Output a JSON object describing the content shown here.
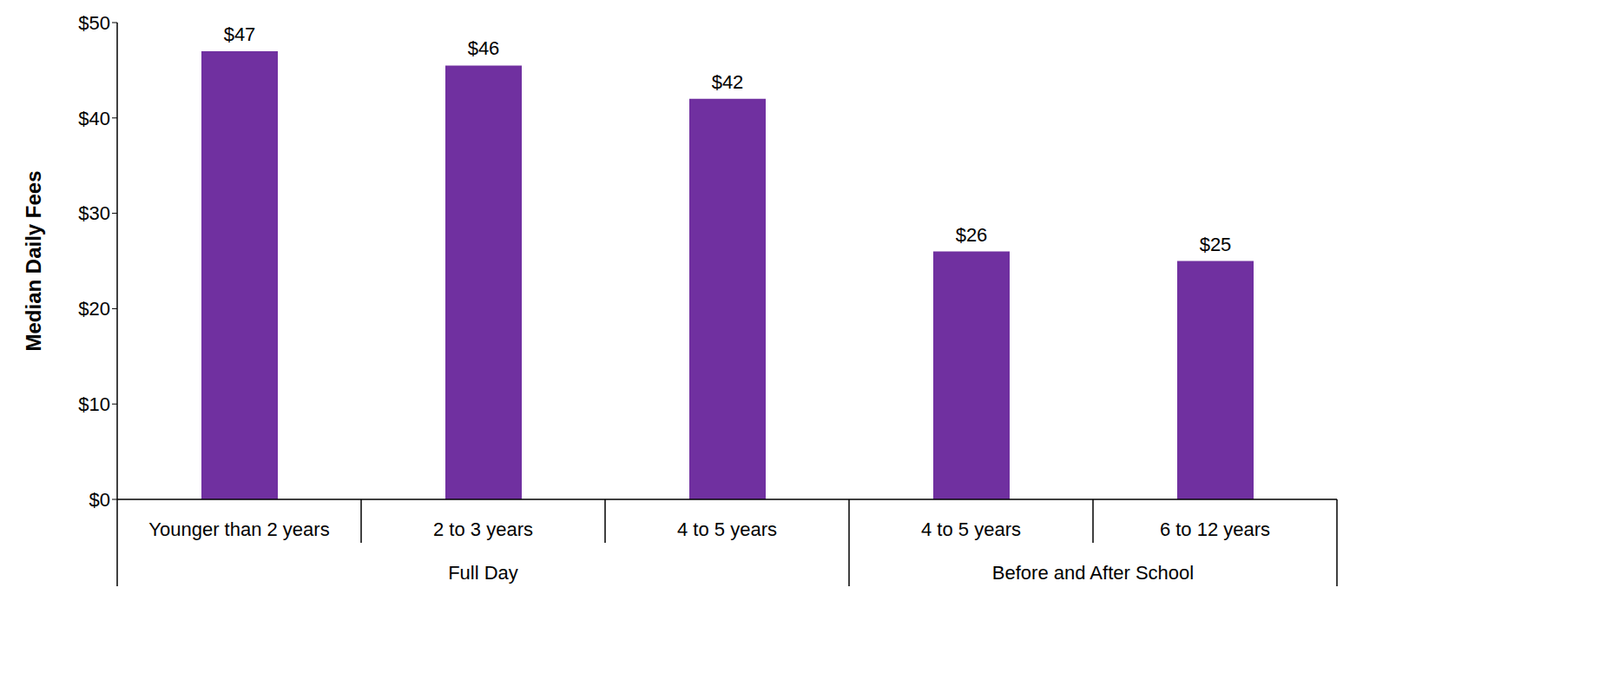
{
  "chart_data": {
    "type": "bar",
    "y_label": "Median Daily Fees",
    "categories": [
      "Younger than 2 years",
      "2 to 3 years",
      "4 to 5 years",
      "4 to 5 years",
      "6 to 12 years"
    ],
    "category_groups": [
      "Full Day",
      "Full Day",
      "Full Day",
      "Before and After School",
      "Before and After School"
    ],
    "values": [
      47,
      45.5,
      42,
      26,
      25
    ],
    "value_labels": [
      "$47",
      "$46",
      "$42",
      "$26",
      "$25"
    ],
    "color": "#7030a0",
    "ylim": [
      0,
      50
    ],
    "yticks": [
      {
        "value": 0,
        "label": "$0"
      },
      {
        "value": 10,
        "label": "$10"
      },
      {
        "value": 20,
        "label": "$20"
      },
      {
        "value": 30,
        "label": "$30"
      },
      {
        "value": 40,
        "label": "$40"
      },
      {
        "value": 50,
        "label": "$50"
      }
    ],
    "grid": false,
    "data_labels": true
  }
}
